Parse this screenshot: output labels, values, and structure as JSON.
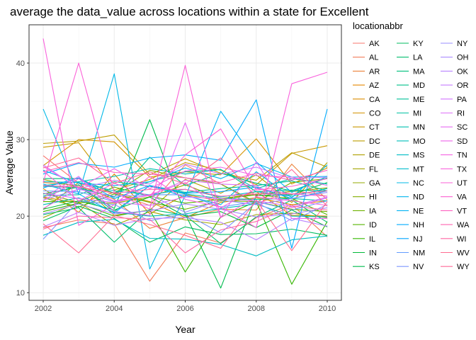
{
  "chart_data": {
    "type": "line",
    "title": "average the data_value across locations within a state for Excellent",
    "xlabel": "Year",
    "ylabel": "Average Value",
    "xlim": [
      2002,
      2010
    ],
    "ylim": [
      9,
      45
    ],
    "x_ticks": [
      "2002",
      "2004",
      "2006",
      "2008",
      "2010"
    ],
    "y_ticks": [
      "10",
      "20",
      "30",
      "40"
    ],
    "grid": true,
    "legend": {
      "title": "locationabbr",
      "placement": "right",
      "columns": 3
    },
    "x": [
      2002,
      2003,
      2004,
      2005,
      2006,
      2007,
      2008,
      2009,
      2010
    ],
    "series": [
      {
        "name": "AK",
        "color": "#F8766D",
        "values": [
          27.9,
          24.3,
          23.0,
          21.4,
          26.7,
          24.2,
          21.6,
          23.4,
          22.6
        ]
      },
      {
        "name": "AL",
        "color": "#F37B59",
        "values": [
          18.5,
          19.5,
          19.0,
          11.5,
          17.8,
          16.5,
          19.8,
          21.5,
          17.3
        ]
      },
      {
        "name": "AR",
        "color": "#EC8239",
        "values": [
          24.4,
          24.0,
          22.2,
          18.4,
          19.8,
          20.9,
          20.8,
          26.8,
          22.1
        ]
      },
      {
        "name": "AZ",
        "color": "#E58700",
        "values": [
          23.6,
          20.5,
          25.5,
          20.3,
          22.8,
          22.0,
          23.2,
          20.1,
          20.0
        ]
      },
      {
        "name": "CA",
        "color": "#DC8D00",
        "values": [
          22.5,
          21.7,
          23.1,
          21.9,
          19.8,
          21.8,
          22.4,
          21.5,
          22.0
        ]
      },
      {
        "name": "CO",
        "color": "#D39200",
        "values": [
          26.6,
          30.0,
          29.7,
          25.1,
          25.8,
          25.4,
          30.1,
          24.2,
          26.3
        ]
      },
      {
        "name": "CT",
        "color": "#C99800",
        "values": [
          29.0,
          29.6,
          23.4,
          24.8,
          27.0,
          26.0,
          24.1,
          28.2,
          29.2
        ]
      },
      {
        "name": "DC",
        "color": "#BD9D00",
        "values": [
          29.5,
          29.8,
          30.6,
          25.4,
          27.5,
          25.6,
          24.7,
          28.3,
          26.4
        ]
      },
      {
        "name": "DE",
        "color": "#B0A100",
        "values": [
          20.9,
          24.4,
          20.1,
          20.8,
          24.8,
          23.0,
          25.4,
          21.8,
          27.0
        ]
      },
      {
        "name": "FL",
        "color": "#A3A500",
        "values": [
          19.8,
          21.8,
          18.8,
          20.6,
          19.5,
          18.9,
          20.2,
          20.4,
          19.8
        ]
      },
      {
        "name": "GA",
        "color": "#93AA00",
        "values": [
          23.0,
          21.8,
          21.7,
          22.5,
          24.1,
          22.3,
          22.9,
          23.2,
          23.7
        ]
      },
      {
        "name": "HI",
        "color": "#82AD00",
        "values": [
          24.8,
          23.8,
          23.0,
          26.0,
          25.0,
          24.2,
          21.8,
          24.4,
          24.9
        ]
      },
      {
        "name": "IA",
        "color": "#6EB100",
        "values": [
          22.4,
          21.2,
          22.9,
          21.8,
          20.9,
          22.0,
          21.9,
          20.9,
          20.6
        ]
      },
      {
        "name": "ID",
        "color": "#57B400",
        "values": [
          21.9,
          21.9,
          23.8,
          22.6,
          21.7,
          22.2,
          22.8,
          22.3,
          20.2
        ]
      },
      {
        "name": "IL",
        "color": "#36B700",
        "values": [
          20.6,
          21.7,
          20.0,
          20.8,
          12.7,
          19.9,
          21.9,
          11.1,
          19.3
        ]
      },
      {
        "name": "IN",
        "color": "#00BA38",
        "values": [
          20.9,
          22.0,
          20.8,
          22.5,
          20.0,
          20.6,
          18.5,
          20.8,
          18.6
        ]
      },
      {
        "name": "KS",
        "color": "#00BB4E",
        "values": [
          22.9,
          23.8,
          21.0,
          32.6,
          20.3,
          10.6,
          22.7,
          22.8,
          24.4
        ]
      },
      {
        "name": "KY",
        "color": "#00BC5F",
        "values": [
          19.4,
          21.3,
          19.7,
          16.6,
          18.6,
          17.6,
          17.7,
          18.3,
          17.5
        ]
      },
      {
        "name": "LA",
        "color": "#00BE6C",
        "values": [
          20.2,
          21.1,
          16.6,
          20.9,
          20.1,
          16.4,
          19.9,
          22.1,
          19.2
        ]
      },
      {
        "name": "MA",
        "color": "#00BF7D",
        "values": [
          24.9,
          24.9,
          23.0,
          24.5,
          25.8,
          26.1,
          23.2,
          23.4,
          23.3
        ]
      },
      {
        "name": "MD",
        "color": "#00C08B",
        "values": [
          23.9,
          23.7,
          22.5,
          27.7,
          24.0,
          25.6,
          24.3,
          23.3,
          25.0
        ]
      },
      {
        "name": "ME",
        "color": "#00C098",
        "values": [
          22.5,
          24.1,
          20.6,
          24.0,
          23.1,
          23.6,
          24.0,
          24.6,
          23.3
        ]
      },
      {
        "name": "MI",
        "color": "#00C1A3",
        "values": [
          22.7,
          22.8,
          24.5,
          23.9,
          22.9,
          22.3,
          22.2,
          22.3,
          22.0
        ]
      },
      {
        "name": "MN",
        "color": "#00C0AF",
        "values": [
          24.0,
          24.5,
          25.2,
          26.2,
          25.5,
          26.1,
          23.6,
          24.9,
          24.2
        ]
      },
      {
        "name": "MO",
        "color": "#00BFBA",
        "values": [
          21.5,
          22.4,
          20.5,
          20.0,
          20.3,
          21.0,
          21.6,
          20.0,
          19.9
        ]
      },
      {
        "name": "MS",
        "color": "#00BDC4",
        "values": [
          17.5,
          19.2,
          19.6,
          17.1,
          17.0,
          16.3,
          14.8,
          16.9,
          17.4
        ]
      },
      {
        "name": "MT",
        "color": "#00BBCE",
        "values": [
          24.5,
          24.4,
          23.3,
          22.8,
          23.5,
          22.5,
          23.2,
          22.6,
          23.6
        ]
      },
      {
        "name": "NC",
        "color": "#00B8E7",
        "values": [
          34.0,
          22.9,
          38.6,
          13.1,
          22.7,
          21.5,
          25.8,
          22.4,
          26.7
        ]
      },
      {
        "name": "ND",
        "color": "#00B5EE",
        "values": [
          26.0,
          24.3,
          24.0,
          24.5,
          26.3,
          24.9,
          26.9,
          25.1,
          25.2
        ]
      },
      {
        "name": "NE",
        "color": "#00B2F3",
        "values": [
          24.2,
          22.9,
          20.4,
          24.0,
          22.5,
          33.7,
          27.1,
          23.1,
          25.2
        ]
      },
      {
        "name": "NH",
        "color": "#00ABFD",
        "values": [
          25.5,
          26.9,
          26.4,
          27.6,
          28.0,
          27.3,
          35.2,
          15.8,
          34.0
        ]
      },
      {
        "name": "NJ",
        "color": "#00A5FF",
        "values": [
          23.7,
          25.0,
          22.3,
          24.0,
          23.0,
          23.2,
          23.8,
          22.3,
          23.3
        ]
      },
      {
        "name": "NM",
        "color": "#619CFF",
        "values": [
          23.3,
          23.2,
          21.9,
          22.8,
          22.8,
          21.2,
          21.9,
          20.8,
          22.0
        ]
      },
      {
        "name": "NV",
        "color": "#7F96FF",
        "values": [
          17.0,
          22.0,
          21.5,
          19.4,
          20.3,
          17.8,
          21.8,
          19.4,
          21.5
        ]
      },
      {
        "name": "NY",
        "color": "#988FFF",
        "values": [
          22.1,
          23.5,
          22.6,
          22.8,
          20.5,
          22.1,
          21.5,
          22.3,
          23.1
        ]
      },
      {
        "name": "OH",
        "color": "#A989FF",
        "values": [
          20.3,
          21.6,
          20.3,
          20.7,
          21.6,
          20.9,
          19.9,
          20.3,
          21.1
        ]
      },
      {
        "name": "OK",
        "color": "#B983FF",
        "values": [
          18.6,
          20.5,
          18.8,
          19.7,
          19.8,
          19.2,
          16.9,
          19.7,
          18.7
        ]
      },
      {
        "name": "OR",
        "color": "#C77CFF",
        "values": [
          26.7,
          23.6,
          24.7,
          24.2,
          26.8,
          25.5,
          26.4,
          24.9,
          25.1
        ]
      },
      {
        "name": "PA",
        "color": "#D375FF",
        "values": [
          23.0,
          22.3,
          21.8,
          21.4,
          22.5,
          22.3,
          22.0,
          21.3,
          22.5
        ]
      },
      {
        "name": "RI",
        "color": "#DE70F9",
        "values": [
          21.0,
          23.6,
          22.0,
          22.7,
          24.7,
          24.2,
          24.0,
          21.1,
          22.4
        ]
      },
      {
        "name": "SC",
        "color": "#E76BF3",
        "values": [
          22.4,
          25.2,
          20.6,
          20.1,
          32.2,
          19.8,
          27.1,
          19.7,
          19.7
        ]
      },
      {
        "name": "SD",
        "color": "#EF67EB",
        "values": [
          26.5,
          23.7,
          26.2,
          23.6,
          25.9,
          26.4,
          25.3,
          25.1,
          24.0
        ]
      },
      {
        "name": "TN",
        "color": "#F564E3",
        "values": [
          22.0,
          24.9,
          21.8,
          22.8,
          24.4,
          21.1,
          23.6,
          22.9,
          22.6
        ]
      },
      {
        "name": "TX",
        "color": "#F962DD",
        "values": [
          43.2,
          18.8,
          21.5,
          25.2,
          22.2,
          21.2,
          18.5,
          37.3,
          38.8
        ]
      },
      {
        "name": "UT",
        "color": "#FB61D7",
        "values": [
          24.4,
          40.0,
          23.1,
          20.9,
          39.7,
          19.8,
          22.5,
          22.0,
          21.4
        ]
      },
      {
        "name": "VA",
        "color": "#FD61D1",
        "values": [
          25.9,
          22.0,
          24.3,
          22.6,
          28.0,
          31.4,
          23.4,
          23.9,
          24.9
        ]
      },
      {
        "name": "VT",
        "color": "#FE61C0",
        "values": [
          25.8,
          27.0,
          25.7,
          25.5,
          25.0,
          24.4,
          25.6,
          24.7,
          26.0
        ]
      },
      {
        "name": "WA",
        "color": "#FF64B0",
        "values": [
          24.0,
          23.8,
          23.0,
          23.5,
          23.5,
          22.6,
          22.9,
          22.9,
          23.3
        ]
      },
      {
        "name": "WI",
        "color": "#FF67A4",
        "values": [
          18.3,
          20.0,
          19.8,
          19.6,
          15.2,
          18.2,
          19.3,
          21.3,
          20.8
        ]
      },
      {
        "name": "WV",
        "color": "#FF6C91",
        "values": [
          19.0,
          15.2,
          20.1,
          18.9,
          17.5,
          15.8,
          22.1,
          15.5,
          21.9
        ]
      },
      {
        "name": "WY",
        "color": "#FF6A98",
        "values": [
          26.3,
          27.6,
          24.3,
          25.8,
          24.2,
          27.6,
          22.5,
          26.1,
          21.3
        ]
      }
    ]
  }
}
